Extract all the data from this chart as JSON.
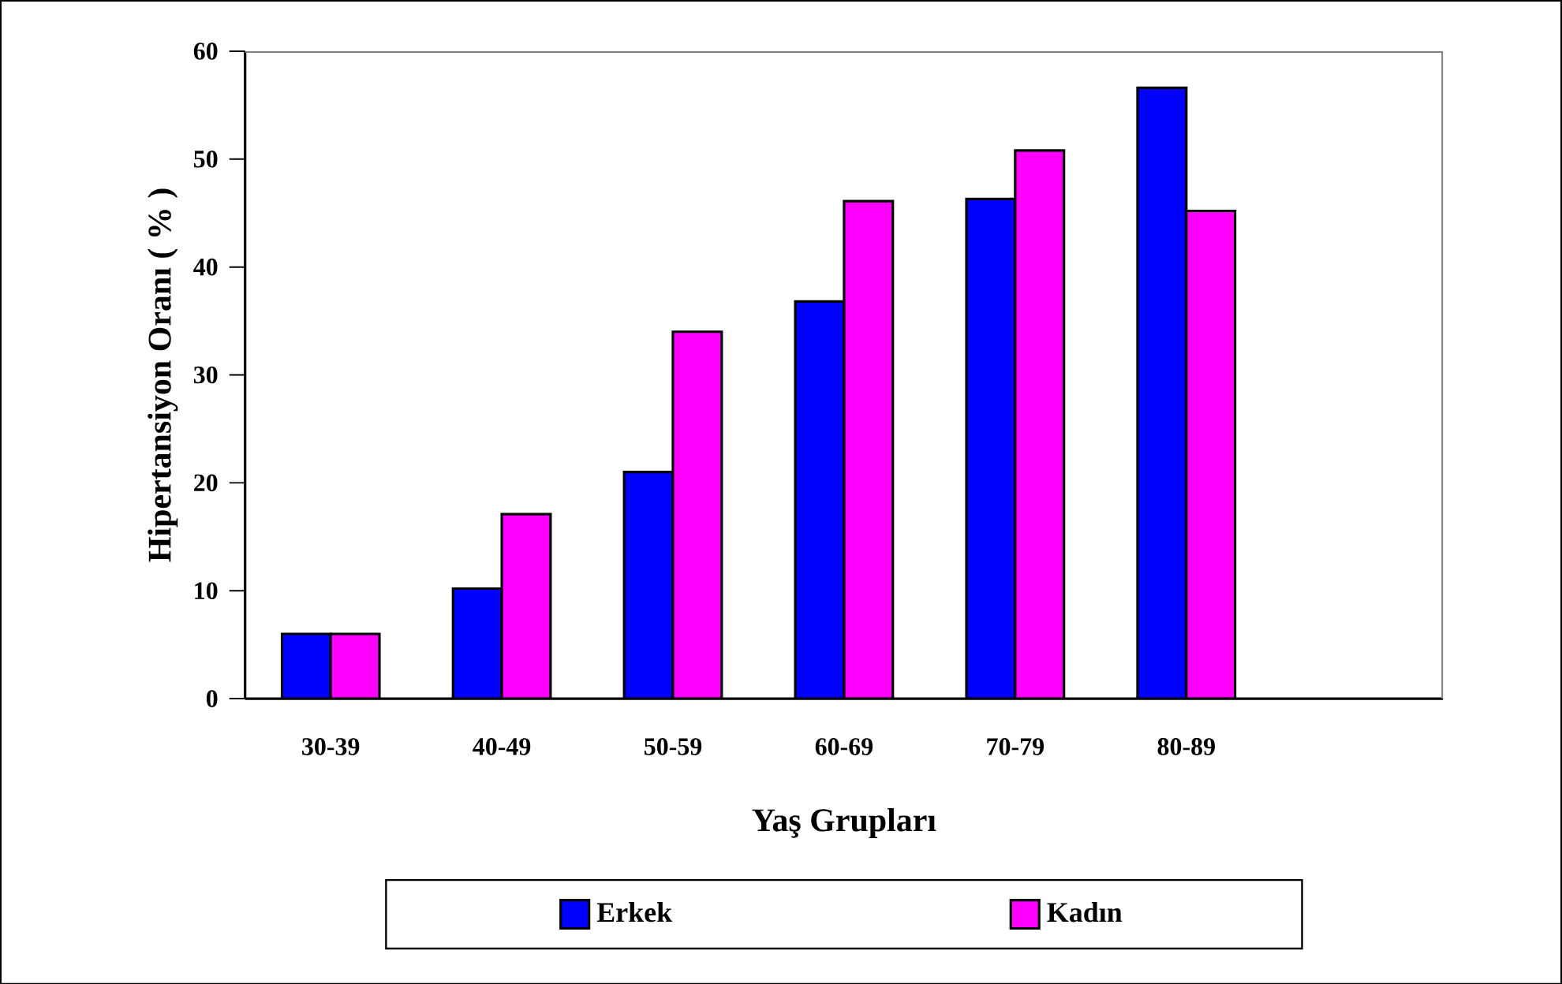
{
  "chart_data": {
    "type": "bar",
    "categories": [
      "30-39",
      "40-49",
      "50-59",
      "60-69",
      "70-79",
      "80-89",
      null
    ],
    "series": [
      {
        "name": "Erkek",
        "color": "#0000ff",
        "values": [
          6.0,
          10.2,
          21.0,
          36.8,
          46.3,
          56.6,
          null
        ]
      },
      {
        "name": "Kadın",
        "color": "#ff00ff",
        "values": [
          6.0,
          17.1,
          34.0,
          46.1,
          50.8,
          45.2,
          null
        ]
      }
    ],
    "xlabel": "Yaş Grupları",
    "ylabel": "Hipertansiyon Oranı ( % )",
    "ylim": [
      0,
      60
    ],
    "yticks": [
      0,
      10,
      20,
      30,
      40,
      50,
      60
    ],
    "legend": "bottom"
  }
}
